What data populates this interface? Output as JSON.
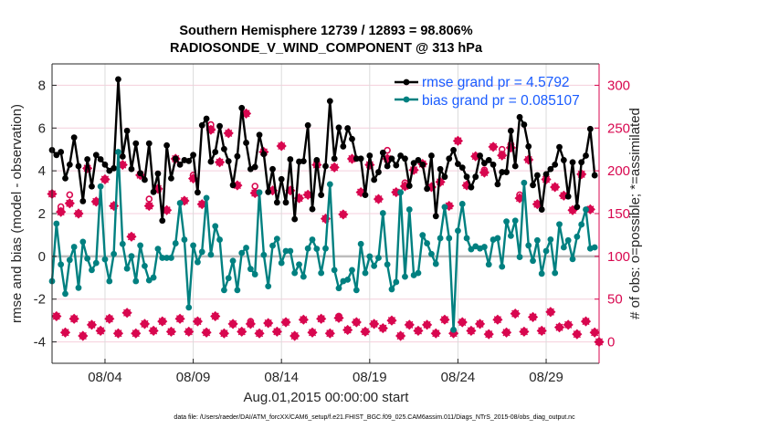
{
  "chart_data": {
    "type": "line",
    "title": [
      "Southern Hemisphere 12739 / 12893 = 98.806%",
      "RADIOSONDE_V_WIND_COMPONENT @ 313 hPa"
    ],
    "xlabel": "Aug.01,2015 00:00:00 start",
    "ylabel_left": "rmse and bias (model - observation)",
    "ylabel_right": "# of obs: o=possible; *=assimilated",
    "footnote": "data file: /Users/raeder/DAI/ATM_forcXX/CAM6_setup/f.e21.FHIST_BGC.f09_025.CAM6assim.011/Diags_NTrS_2015-08/obs_diag_output.nc",
    "x_start": "2015-08-01 00:00",
    "x_step_hours": 6,
    "xlim": [
      "08/01 00:00",
      "09/01 00:00"
    ],
    "x_ticks": [
      "08/04",
      "08/09",
      "08/14",
      "08/19",
      "08/24",
      "08/29"
    ],
    "ylim_left": [
      -5,
      9
    ],
    "yticks_left": [
      -4,
      -2,
      0,
      2,
      4,
      6,
      8
    ],
    "ylim_right": [
      -25,
      325
    ],
    "yticks_right": [
      0,
      50,
      100,
      150,
      200,
      250,
      300
    ],
    "grid": true,
    "legend_position": "top-right",
    "colors": {
      "rmse": "#000000",
      "bias": "#008080",
      "obs": "#d8074f",
      "legend_text": "#1a5cff",
      "zero_line": "#bdbdbd"
    },
    "series": [
      {
        "name": "rmse grand pr = 4.5792",
        "axis": "left",
        "values": [
          4.97,
          4.74,
          4.88,
          3.65,
          4.29,
          5.56,
          4.22,
          2.58,
          4.54,
          3.27,
          4.74,
          4.54,
          4.29,
          4.0,
          4.12,
          8.28,
          4.67,
          5.87,
          4.08,
          5.28,
          3.89,
          3.58,
          5.28,
          3.01,
          3.87,
          1.67,
          5.19,
          3.65,
          4.57,
          4.29,
          4.5,
          4.46,
          4.74,
          2.99,
          6.13,
          6.44,
          4.43,
          4.88,
          6.09,
          5.02,
          4.45,
          3.33,
          4.68,
          6.94,
          5.31,
          4.08,
          4.18,
          5.68,
          4.78,
          3.01,
          4.08,
          2.52,
          3.61,
          2.52,
          4.54,
          1.74,
          4.43,
          4.45,
          6.13,
          2.21,
          4.5,
          2.87,
          4.22,
          7.26,
          4.57,
          6.02,
          5.14,
          5.99,
          5.49,
          4.57,
          4.57,
          2.87,
          4.71,
          3.58,
          3.94,
          4.85,
          4.22,
          4.57,
          4.26,
          4.71,
          4.57,
          3.3,
          4.36,
          4.5,
          4.29,
          3.16,
          4.71,
          1.88,
          4.08,
          3.72,
          4.57,
          4.97,
          4.32,
          4.15,
          3.72,
          3.23,
          3.72,
          4.71,
          4.36,
          4.5,
          4.29,
          3.37,
          3.94,
          3.94,
          5.87,
          4.22,
          6.51,
          6.16,
          5.14,
          3.33,
          3.79,
          2.19,
          3.84,
          4.08,
          4.29,
          5.11,
          4.5,
          2.8,
          4.4,
          2.31,
          4.4,
          4.71,
          5.96,
          3.79,
          null
        ]
      },
      {
        "name": "bias grand pr = 0.085107",
        "axis": "left",
        "values": [
          -1.16,
          1.53,
          -0.38,
          -1.75,
          -0.17,
          0.44,
          -1.47,
          0.68,
          -0.1,
          -0.64,
          -0.31,
          3.27,
          -0.14,
          -1.16,
          0.11,
          4.88,
          0.58,
          -0.57,
          0.01,
          -1.16,
          0.51,
          -0.45,
          -1.12,
          -0.99,
          0.35,
          -0.07,
          -0.07,
          -0.07,
          0.61,
          2.49,
          0.78,
          -2.39,
          0.51,
          -0.27,
          0.21,
          2.73,
          0.08,
          1.41,
          0.78,
          -1.58,
          -1.02,
          -0.21,
          -1.58,
          0.16,
          0.4,
          -0.59,
          -0.84,
          2.99,
          0.07,
          -1.4,
          0.5,
          0.82,
          -0.31,
          0.25,
          0.25,
          -0.78,
          -0.38,
          -0.95,
          0.37,
          0.78,
          0.35,
          -0.78,
          0.37,
          3.37,
          -0.64,
          -1.49,
          -1.16,
          -1.09,
          -0.64,
          -1.58,
          0.58,
          -0.78,
          0.0,
          -0.45,
          -0.07,
          2.02,
          -0.38,
          -1.54,
          -1.2,
          2.99,
          -0.95,
          2.19,
          -0.88,
          -0.78,
          0.99,
          0.61,
          0.11,
          -0.35,
          0.85,
          2.31,
          0.85,
          -3.43,
          1.2,
          2.45,
          0.85,
          0.33,
          0.47,
          0.37,
          0.44,
          -0.38,
          0.78,
          0.85,
          -0.48,
          1.63,
          0.96,
          1.67,
          -0.03,
          3.44,
          0.51,
          -0.21,
          0.75,
          -0.81,
          0.25,
          0.79,
          -0.78,
          1.5,
          0.42,
          0.75,
          -0.13,
          0.92,
          1.49,
          2.19,
          0.37,
          0.42,
          null
        ]
      },
      {
        "name": "possible",
        "axis": "right",
        "marker": "o",
        "values": [
          173,
          30,
          158,
          11,
          172,
          27,
          150,
          7,
          203,
          20,
          164,
          13,
          190,
          27,
          159,
          10,
          207,
          34,
          123,
          10,
          195,
          21,
          167,
          13,
          179,
          24,
          154,
          12,
          214,
          27,
          165,
          12,
          195,
          24,
          161,
          11,
          254,
          30,
          210,
          10,
          244,
          21,
          183,
          12,
          267,
          24,
          182,
          10,
          222,
          22,
          177,
          12,
          229,
          23,
          177,
          7,
          168,
          26,
          172,
          11,
          207,
          27,
          144,
          10,
          204,
          30,
          149,
          14,
          214,
          23,
          175,
          12,
          207,
          21,
          167,
          16,
          224,
          25,
          175,
          7,
          186,
          20,
          201,
          13,
          208,
          20,
          181,
          10,
          187,
          26,
          159,
          10,
          235,
          23,
          183,
          13,
          217,
          21,
          201,
          9,
          228,
          26,
          225,
          11,
          231,
          33,
          172,
          12,
          213,
          29,
          161,
          13,
          190,
          35,
          181,
          17,
          171,
          20,
          154,
          9,
          196,
          24,
          155,
          11,
          0
        ]
      },
      {
        "name": "assimilated",
        "axis": "right",
        "marker": "*",
        "values": [
          173,
          30,
          152,
          11,
          162,
          27,
          150,
          7,
          203,
          20,
          164,
          13,
          190,
          27,
          159,
          10,
          207,
          34,
          123,
          10,
          195,
          21,
          159,
          13,
          179,
          24,
          154,
          12,
          214,
          27,
          165,
          12,
          191,
          24,
          161,
          11,
          248,
          30,
          210,
          10,
          244,
          21,
          183,
          12,
          267,
          21,
          174,
          10,
          222,
          22,
          177,
          12,
          229,
          23,
          177,
          7,
          168,
          26,
          172,
          11,
          207,
          27,
          144,
          10,
          204,
          28,
          149,
          14,
          214,
          23,
          175,
          12,
          207,
          21,
          167,
          16,
          214,
          25,
          175,
          7,
          182,
          20,
          201,
          13,
          208,
          20,
          181,
          10,
          187,
          26,
          159,
          10,
          235,
          23,
          183,
          13,
          217,
          21,
          198,
          9,
          228,
          26,
          218,
          11,
          227,
          33,
          168,
          12,
          213,
          29,
          161,
          13,
          190,
          35,
          181,
          17,
          171,
          20,
          154,
          9,
          196,
          24,
          155,
          11,
          0
        ]
      }
    ]
  }
}
